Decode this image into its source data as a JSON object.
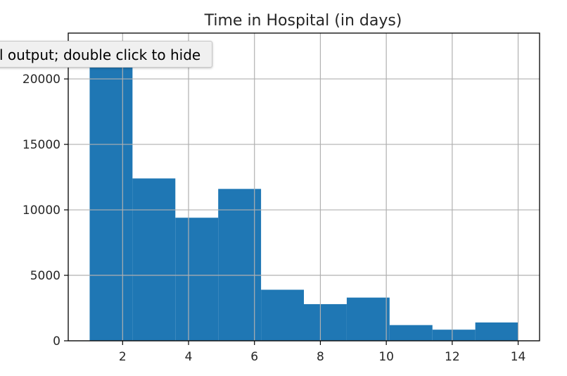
{
  "tooltip": {
    "text": "l output; double click to hide"
  },
  "chart_data": {
    "type": "bar",
    "title": "Time in Hospital (in days)",
    "xlabel": "",
    "ylabel": "",
    "bin_edges": [
      1,
      2.3,
      3.6,
      4.9,
      6.2,
      7.5,
      8.8,
      10.1,
      11.4,
      12.7,
      14
    ],
    "values": [
      21500,
      12400,
      9400,
      11600,
      3900,
      2800,
      3300,
      1200,
      850,
      1400
    ],
    "xlim": [
      0.35,
      14.65
    ],
    "ylim": [
      0,
      23500
    ],
    "xticks": [
      2,
      4,
      6,
      8,
      10,
      12,
      14
    ],
    "yticks": [
      0,
      5000,
      10000,
      15000,
      20000
    ],
    "grid": true,
    "bar_color": "#1f77b4",
    "grid_color": "#b0b0b0"
  }
}
